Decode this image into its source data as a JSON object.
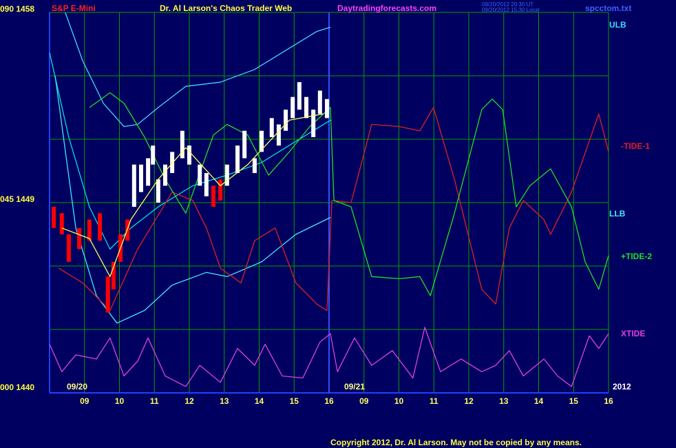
{
  "chart_data": {
    "type": "line",
    "title": "Dr. Al Larson's Chaos Trader Web",
    "instrument": "S&P E-Mini",
    "site": "Daytradingforecasts.com",
    "timestamps": [
      "09/20/2012 20:30 UT",
      "09/20/2012 15:30 Local"
    ],
    "file": "spcctom.txt",
    "copyright": "Copyright 2012, Dr. Al Larson. May not be copied by any means.",
    "date_labels": [
      "09/20",
      "09/21",
      "2012"
    ],
    "xlim": [
      0,
      16
    ],
    "xticks": [
      {
        "value": 1,
        "label": "09"
      },
      {
        "value": 2,
        "label": "10"
      },
      {
        "value": 3,
        "label": "11"
      },
      {
        "value": 4,
        "label": "12"
      },
      {
        "value": 5,
        "label": "13"
      },
      {
        "value": 6,
        "label": "14"
      },
      {
        "value": 7,
        "label": "15"
      },
      {
        "value": 8,
        "label": "16"
      },
      {
        "value": 9,
        "label": "09"
      },
      {
        "value": 10,
        "label": "10"
      },
      {
        "value": 11,
        "label": "11"
      },
      {
        "value": 12,
        "label": "12"
      },
      {
        "value": 13,
        "label": "13"
      },
      {
        "value": 14,
        "label": "14"
      },
      {
        "value": 15,
        "label": "15"
      },
      {
        "value": 16,
        "label": "16"
      }
    ],
    "day_divider": 8,
    "ylim": [
      1440,
      1458
    ],
    "yticks": [
      {
        "value": 1458,
        "label": "090 1458"
      },
      {
        "value": 1449,
        "label": "045 1449"
      },
      {
        "value": 1440,
        "label": "000 1440"
      }
    ],
    "ygrid": [
      1443,
      1446,
      1452,
      1455
    ],
    "grid": true,
    "grid_color": "#00a000",
    "price": {
      "x": [
        0.12,
        0.35,
        0.55,
        0.85,
        1.14,
        1.44,
        1.67,
        1.83,
        2.03,
        2.23,
        2.42,
        2.62,
        2.82,
        2.96,
        3.11,
        3.31,
        3.51,
        3.8,
        4.0,
        4.3,
        4.49,
        4.69,
        4.89,
        5.08,
        5.38,
        5.58,
        5.87,
        6.07,
        6.36,
        6.56,
        6.76,
        6.96,
        7.15,
        7.35,
        7.55,
        7.74,
        7.94
      ],
      "high": [
        1448.8,
        1448.5,
        1447.5,
        1447.8,
        1448.2,
        1448.5,
        1445.5,
        1446.2,
        1447.5,
        1448.2,
        1450.8,
        1450.8,
        1451.1,
        1451.7,
        1450.1,
        1450.8,
        1451.4,
        1452.4,
        1451.7,
        1450.8,
        1450.4,
        1449.8,
        1450.1,
        1450.8,
        1451.7,
        1452.4,
        1451.1,
        1452.4,
        1453.0,
        1452.7,
        1453.4,
        1454.0,
        1454.7,
        1454.0,
        1453.4,
        1454.3,
        1453.9
      ],
      "low": [
        1447.8,
        1447.5,
        1446.2,
        1446.8,
        1447.2,
        1447.2,
        1443.8,
        1444.9,
        1446.2,
        1447.2,
        1448.8,
        1449.5,
        1449.8,
        1450.8,
        1449.0,
        1449.8,
        1450.4,
        1451.1,
        1450.8,
        1449.8,
        1449.3,
        1448.8,
        1449.1,
        1449.8,
        1450.4,
        1451.1,
        1450.4,
        1451.4,
        1452.1,
        1451.7,
        1452.4,
        1453.0,
        1453.4,
        1453.0,
        1452.1,
        1453.2,
        1453.0
      ],
      "colors": [
        "#ff0000",
        "#ff0000",
        "#ff0000",
        "#ff0000",
        "#ff0000",
        "#ff0000",
        "#ff0000",
        "#ff0000",
        "#ff0000",
        "#ff0000",
        "#ffffff",
        "#ffffff",
        "#ffffff",
        "#ffffff",
        "#ffffff",
        "#ffffff",
        "#ffffff",
        "#ffffff",
        "#ffffff",
        "#ffffff",
        "#ffffff",
        "#ff0000",
        "#ff0000",
        "#ffffff",
        "#ffffff",
        "#ffffff",
        "#ffffff",
        "#ffffff",
        "#ffffff",
        "#ffffff",
        "#ffffff",
        "#ffffff",
        "#ffffff",
        "#ffffff",
        "#ffffff",
        "#ffffff",
        "#ffffff"
      ]
    },
    "series": [
      {
        "name": "ULB",
        "color": "#40d8ff",
        "x": [
          0.45,
          0.95,
          1.54,
          2.13,
          2.52,
          3.11,
          3.9,
          4.89,
          5.87,
          6.86,
          7.65,
          8.04
        ],
        "values": [
          1458.0,
          1455.7,
          1453.7,
          1452.6,
          1452.7,
          1453.5,
          1454.5,
          1454.7,
          1455.3,
          1456.3,
          1457.1,
          1457.3
        ]
      },
      {
        "color": "#00e0e0",
        "x": [
          0,
          0.55,
          1.14,
          1.73,
          2.33,
          3.11,
          4.1,
          5.08,
          6.07,
          7.05,
          8.04
        ],
        "values": [
          1456.1,
          1452.1,
          1448.8,
          1446.8,
          1447.8,
          1448.8,
          1449.8,
          1450.3,
          1450.9,
          1451.9,
          1452.9
        ]
      },
      {
        "name": "LLB",
        "color": "#40e8ff",
        "x": [
          0.16,
          0.75,
          1.34,
          1.93,
          2.72,
          3.51,
          4.49,
          5.08,
          6.07,
          7.05,
          8.04
        ],
        "values": [
          1455.0,
          1447.8,
          1444.6,
          1443.3,
          1443.9,
          1445.1,
          1445.7,
          1445.5,
          1446.2,
          1447.5,
          1448.3
        ]
      },
      {
        "name": "-TIDE-1",
        "color": "#e02020",
        "x": [
          0.26,
          0.95,
          1.73,
          2.52,
          3.51,
          4.1,
          4.49,
          4.89,
          5.48,
          5.87,
          6.46,
          7.05,
          7.65,
          7.94,
          8.08,
          8.63,
          9.22,
          10.01,
          10.6,
          10.99,
          11.59,
          12.37,
          12.77,
          13.16,
          13.56,
          14.15,
          14.34,
          14.94,
          15.72,
          16.0
        ],
        "values": [
          1445.9,
          1445.2,
          1443.9,
          1446.8,
          1449.5,
          1449.1,
          1447.8,
          1445.9,
          1445.2,
          1447.2,
          1447.8,
          1445.2,
          1444.2,
          1443.9,
          1449.1,
          1449.0,
          1452.7,
          1452.6,
          1452.4,
          1453.5,
          1450.1,
          1444.9,
          1444.2,
          1447.8,
          1449.1,
          1448.2,
          1447.5,
          1449.5,
          1453.2,
          1451.4
        ]
      },
      {
        "name": "+TIDE-2",
        "color": "#20e020",
        "x": [
          1.14,
          1.73,
          2.13,
          2.72,
          3.31,
          3.9,
          4.3,
          4.69,
          5.08,
          5.67,
          6.27,
          6.86,
          7.45,
          8.04,
          8.14,
          8.63,
          9.22,
          10.01,
          10.6,
          10.9,
          11.59,
          12.37,
          12.67,
          12.97,
          13.36,
          13.75,
          14.34,
          14.94,
          15.33,
          15.72,
          16.0
        ],
        "values": [
          1453.5,
          1454.2,
          1453.7,
          1452.1,
          1450.1,
          1448.5,
          1450.4,
          1452.2,
          1452.7,
          1452.2,
          1450.3,
          1451.4,
          1452.6,
          1453.5,
          1449.1,
          1448.8,
          1445.5,
          1445.4,
          1445.5,
          1444.6,
          1448.5,
          1453.4,
          1453.9,
          1453.4,
          1448.8,
          1449.8,
          1450.6,
          1448.8,
          1446.2,
          1444.9,
          1446.5
        ]
      },
      {
        "color": "#ffff60",
        "x": [
          0.35,
          1.14,
          1.73,
          2.33,
          3.11,
          3.9,
          4.89,
          5.67,
          6.86,
          7.84
        ],
        "values": [
          1447.8,
          1447.3,
          1445.5,
          1448.2,
          1450.1,
          1451.6,
          1449.8,
          1450.8,
          1452.9,
          1453.2
        ]
      },
      {
        "name": "XTIDE",
        "color": "#e040e0",
        "x": [
          0,
          0.35,
          0.75,
          1.34,
          1.73,
          2.13,
          2.52,
          2.82,
          3.31,
          3.9,
          4.3,
          4.89,
          5.38,
          5.87,
          6.17,
          6.66,
          7.25,
          7.74,
          8.04,
          8.24,
          8.73,
          9.22,
          9.81,
          10.4,
          10.74,
          11.19,
          11.78,
          12.37,
          12.77,
          13.16,
          13.56,
          14.15,
          14.54,
          14.94,
          15.45,
          15.72,
          16.0
        ],
        "values": [
          1442.3,
          1441.0,
          1441.8,
          1441.6,
          1442.6,
          1440.8,
          1441.5,
          1442.6,
          1440.8,
          1440.3,
          1441.3,
          1440.5,
          1442.1,
          1441.3,
          1442.3,
          1440.8,
          1440.7,
          1442.4,
          1442.8,
          1441.0,
          1442.6,
          1441.3,
          1442.0,
          1440.7,
          1443.1,
          1441.0,
          1441.6,
          1441.0,
          1441.3,
          1442.0,
          1440.8,
          1441.6,
          1440.8,
          1440.3,
          1442.7,
          1442.1,
          1442.8
        ]
      }
    ]
  }
}
